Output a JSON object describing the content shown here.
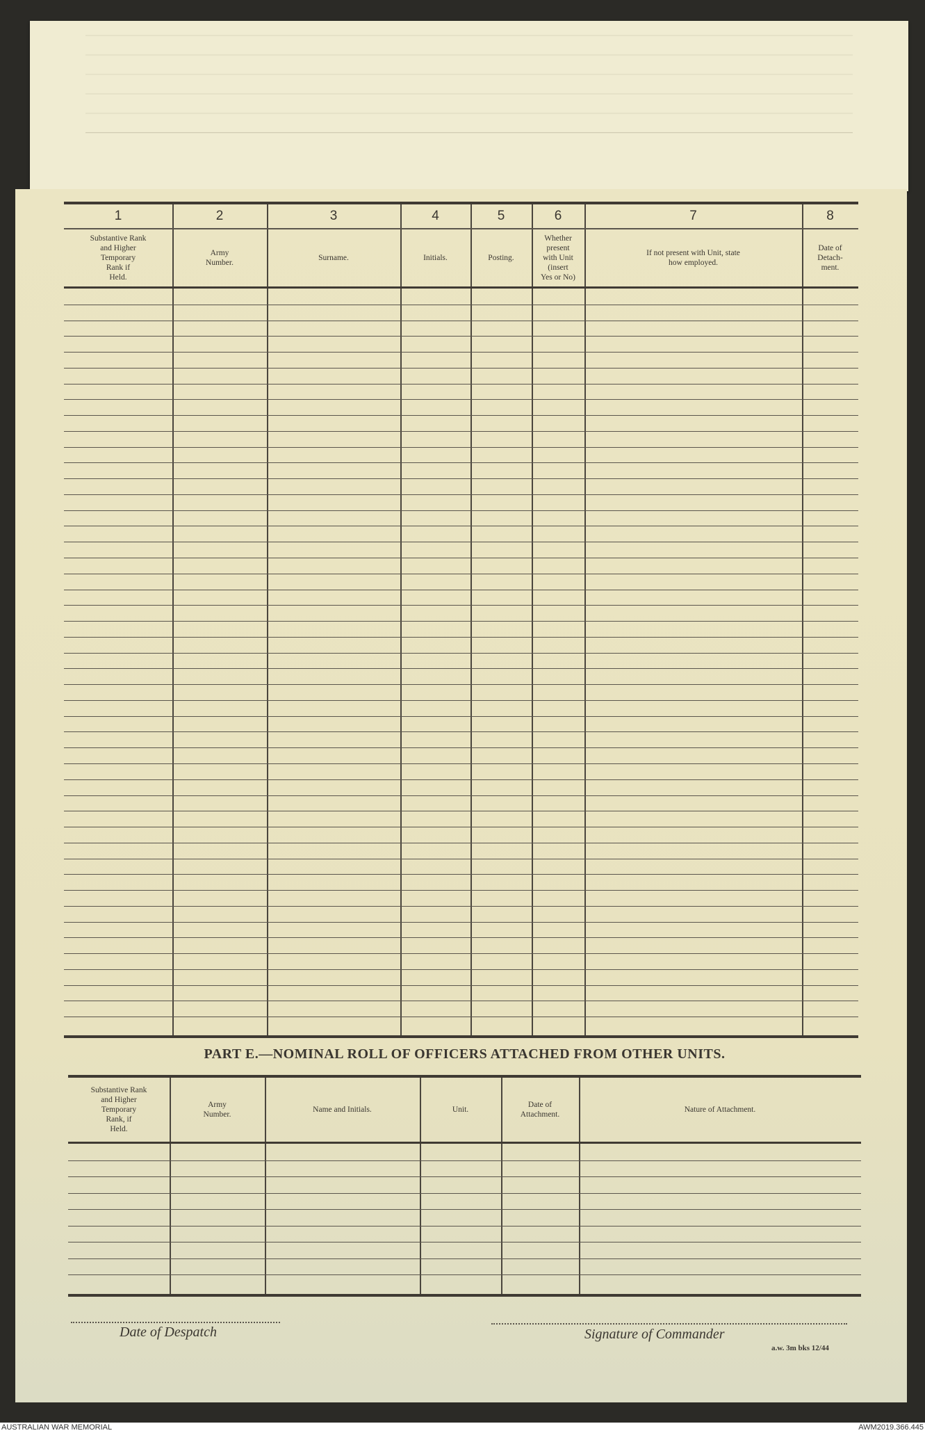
{
  "part_d_table": {
    "column_numbers": [
      "1",
      "2",
      "3",
      "4",
      "5",
      "6",
      "7",
      "8"
    ],
    "column_headers": [
      "Substantive Rank\nand Higher\nTemporary\nRank if\nHeld.",
      "Army\nNumber.",
      "Surname.",
      "Initials.",
      "Posting.",
      "Whether\npresent\nwith Unit\n(insert\nYes or No)",
      "If not present with Unit, state\nhow employed.",
      "Date of\nDetach-\nment."
    ]
  },
  "part_e": {
    "title": "PART E.—NOMINAL ROLL OF OFFICERS ATTACHED FROM OTHER UNITS.",
    "column_headers": [
      "Substantive Rank\nand Higher\nTemporary\nRank, if\nHeld.",
      "Army\nNumber.",
      "Name and Initials.",
      "Unit.",
      "Date of\nAttachment.",
      "Nature of Attachment."
    ]
  },
  "signatures": {
    "date_of_despatch": "Date of Despatch",
    "signature_of_commander": "Signature of Commander"
  },
  "form_code": "a.w. 3m bks 12/44",
  "footer": {
    "left": "AUSTRALIAN WAR MEMORIAL",
    "right": "AWM2019.366.445"
  },
  "colors": {
    "paper": "#e9e3c0",
    "ink": "#3a3630",
    "background": "#2b2a26"
  }
}
